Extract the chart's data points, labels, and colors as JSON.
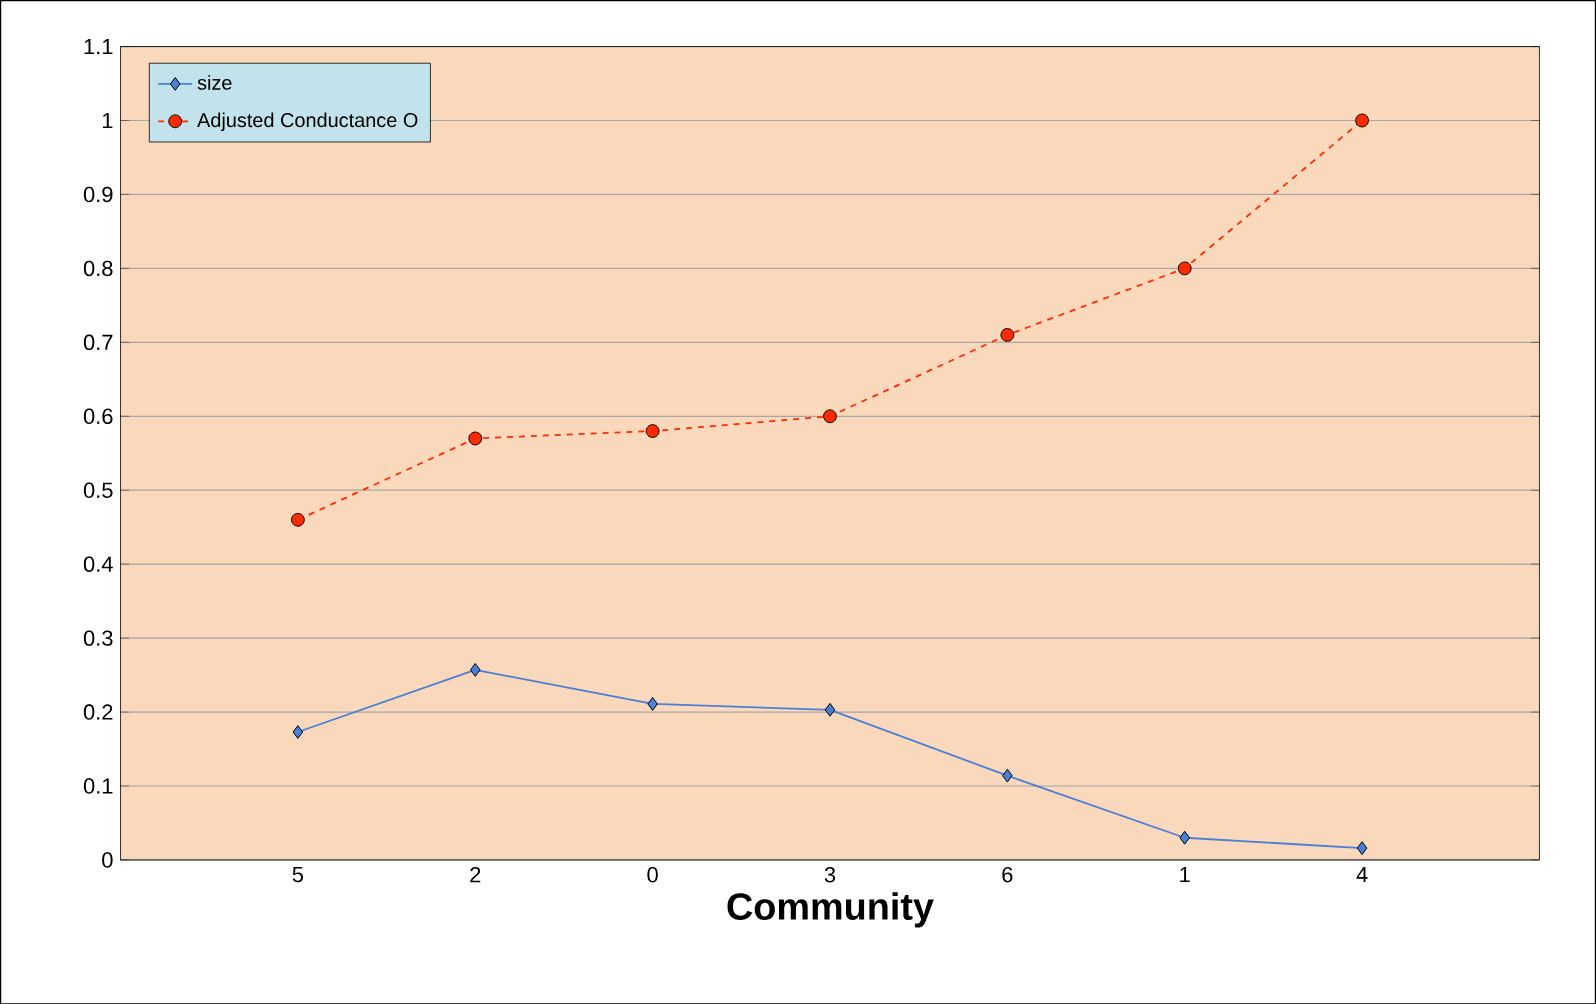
{
  "chart_data": {
    "type": "line",
    "xlabel": "Community",
    "categories": [
      "5",
      "2",
      "0",
      "3",
      "6",
      "1",
      "4"
    ],
    "series": [
      {
        "name": "size",
        "color": "#4a7fd6",
        "marker": "diamond",
        "line_style": "solid",
        "values": [
          0.173,
          0.257,
          0.211,
          0.203,
          0.114,
          0.03,
          0.016
        ]
      },
      {
        "name": "Adjusted Conductance O",
        "color": "#ff2a00",
        "marker": "circle",
        "line_style": "dashed",
        "values": [
          0.46,
          0.57,
          0.58,
          0.6,
          0.71,
          0.8,
          1.0
        ]
      }
    ],
    "ylim": [
      0,
      1.1
    ],
    "yticks": [
      0,
      0.1,
      0.2,
      0.3,
      0.4,
      0.5,
      0.6,
      0.7,
      0.8,
      0.9,
      1,
      1.1
    ],
    "grid": "y",
    "legend": "top left"
  }
}
